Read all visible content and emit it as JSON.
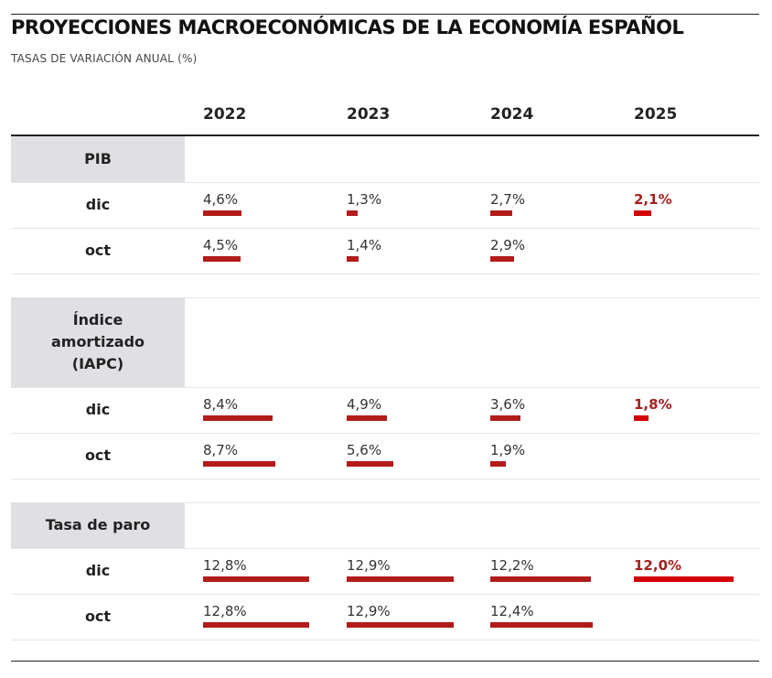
{
  "title": "PROYECCIONES MACROECONÓMICAS DE LA ECONOMÍA ESPAÑOL",
  "subtitle": "TASAS DE VARIACIÓN ANUAL (%)",
  "colors": {
    "bar": "#b31b1b",
    "highlight_bar": "#d40000",
    "highlight_text": "#a32020",
    "section_bg": "#e0dfe3"
  },
  "chart_data": {
    "type": "table",
    "title": "PROYECCIONES MACROECONÓMICAS DE LA ECONOMÍA ESPAÑOL",
    "subtitle": "TASAS DE VARIACIÓN ANUAL (%)",
    "columns": [
      "2022",
      "2023",
      "2024",
      "2025"
    ],
    "sections": [
      {
        "label": "PIB",
        "rows": [
          {
            "label": "dic",
            "values": [
              4.6,
              1.3,
              2.7,
              2.1
            ],
            "text": [
              "4,6%",
              "1,3%",
              "2,7%",
              "2,1%"
            ]
          },
          {
            "label": "oct",
            "values": [
              4.5,
              1.4,
              2.9,
              null
            ],
            "text": [
              "4,5%",
              "1,4%",
              "2,9%",
              ""
            ]
          }
        ]
      },
      {
        "label": "Índice amortizado (IAPC)",
        "rows": [
          {
            "label": "dic",
            "values": [
              8.4,
              4.9,
              3.6,
              1.8
            ],
            "text": [
              "8,4%",
              "4,9%",
              "3,6%",
              "1,8%"
            ]
          },
          {
            "label": "oct",
            "values": [
              8.7,
              5.6,
              1.9,
              null
            ],
            "text": [
              "8,7%",
              "5,6%",
              "1,9%",
              ""
            ]
          }
        ]
      },
      {
        "label": "Tasa de paro",
        "rows": [
          {
            "label": "dic",
            "values": [
              12.8,
              12.9,
              12.2,
              12.0
            ],
            "text": [
              "12,8%",
              "12,9%",
              "12,2%",
              "12,0%"
            ]
          },
          {
            "label": "oct",
            "values": [
              12.8,
              12.9,
              12.4,
              null
            ],
            "text": [
              "12,8%",
              "12,9%",
              "12,4%",
              ""
            ]
          }
        ]
      }
    ],
    "highlight_column": 3,
    "bar_max": 14
  }
}
